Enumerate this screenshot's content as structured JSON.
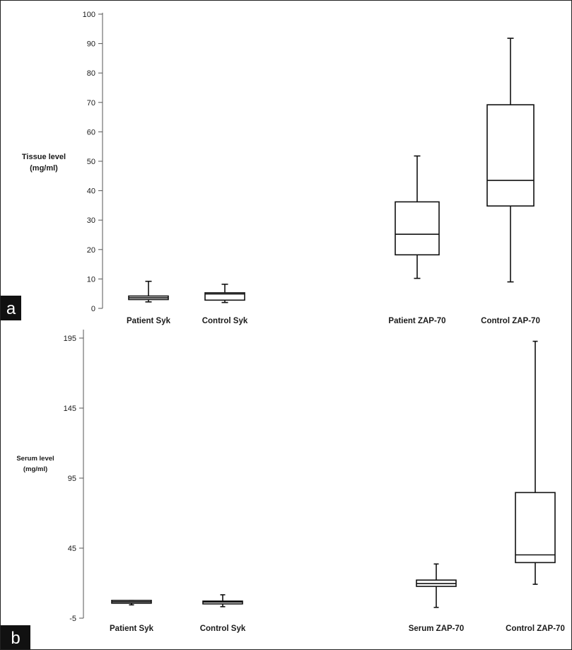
{
  "figure": {
    "panels": [
      "a",
      "b"
    ]
  },
  "chart_data": [
    {
      "panel": "a",
      "type": "box",
      "ylabel": [
        "Tissue level",
        "(mg/ml)"
      ],
      "ylim": [
        0,
        100
      ],
      "yticks": [
        0,
        10,
        20,
        30,
        40,
        50,
        60,
        70,
        80,
        90,
        100
      ],
      "categories": [
        "Patient Syk",
        "Control Syk",
        "Patient ZAP-70",
        "Control ZAP-70"
      ],
      "boxes": [
        {
          "label": "Patient Syk",
          "min": 2.2,
          "q1": 3.0,
          "median": 3.6,
          "q3": 4.2,
          "max": 9.2
        },
        {
          "label": "Control Syk",
          "min": 2.0,
          "q1": 2.8,
          "median": 4.9,
          "q3": 5.3,
          "max": 8.2
        },
        {
          "label": "Patient ZAP-70",
          "min": 10.2,
          "q1": 18.2,
          "median": 25.2,
          "q3": 36.2,
          "max": 51.8
        },
        {
          "label": "Control ZAP-70",
          "min": 9.0,
          "q1": 34.8,
          "median": 43.5,
          "q3": 69.2,
          "max": 91.8
        }
      ]
    },
    {
      "panel": "b",
      "type": "box",
      "ylabel": [
        "Serum level",
        "(mg/ml)"
      ],
      "ylim": [
        -5,
        195
      ],
      "yticks": [
        -5,
        45,
        95,
        145,
        195
      ],
      "categories": [
        "Patient Syk",
        "Control Syk",
        "Serum ZAP-70",
        "Control ZAP-70"
      ],
      "boxes": [
        {
          "label": "Patient Syk",
          "min": 4.5,
          "q1": 5.7,
          "median": 6.7,
          "q3": 7.7,
          "max": 7.7
        },
        {
          "label": "Control Syk",
          "min": 3.2,
          "q1": 5.2,
          "median": 6.5,
          "q3": 7.2,
          "max": 11.7
        },
        {
          "label": "Serum ZAP-70",
          "min": 2.7,
          "q1": 17.7,
          "median": 19.7,
          "q3": 22.2,
          "max": 33.7
        },
        {
          "label": "Control ZAP-70",
          "min": 19.2,
          "q1": 34.7,
          "median": 40.2,
          "q3": 84.7,
          "max": 192.7
        }
      ]
    }
  ]
}
